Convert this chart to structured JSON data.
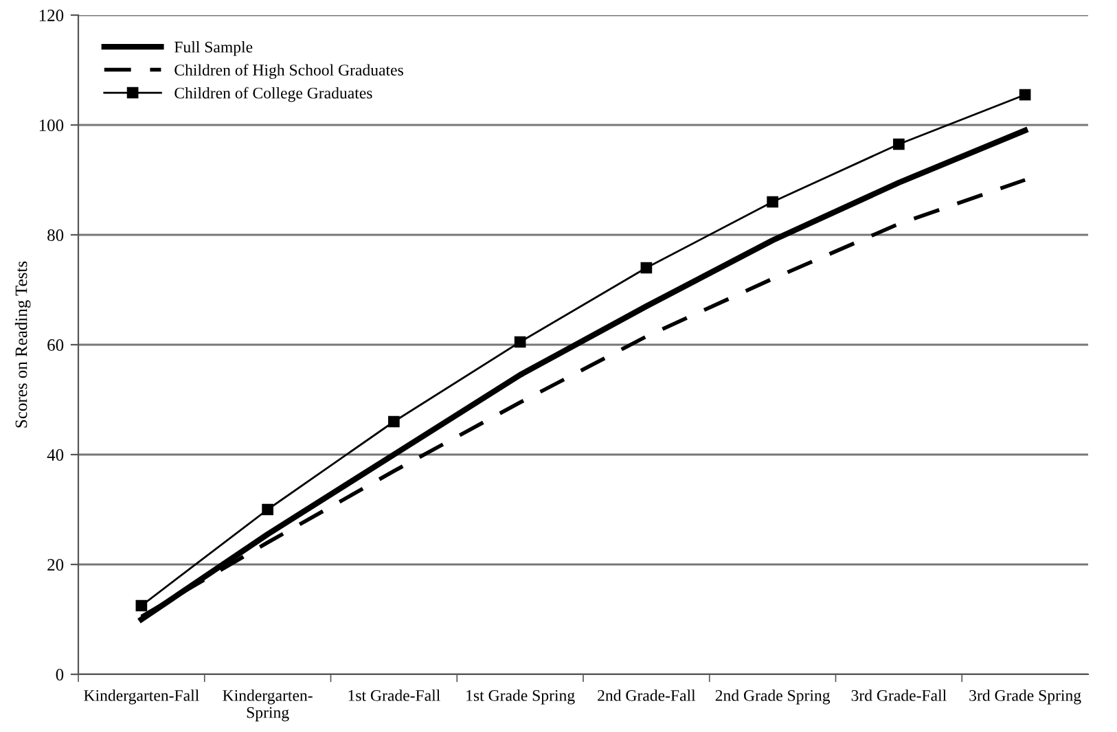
{
  "chart_data": {
    "type": "line",
    "ylabel": "Scores on Reading Tests",
    "categories": [
      "Kindergarten-Fall",
      "Kindergarten-\nSpring",
      "1st Grade-Fall",
      "1st Grade Spring",
      "2nd Grade-Fall",
      "2nd Grade Spring",
      "3rd Grade-Fall",
      "3rd Grade Spring"
    ],
    "series": [
      {
        "name": "Full Sample",
        "color": "#000000",
        "line_style": "solid",
        "marker": "none",
        "values": [
          10,
          25.5,
          40,
          54.5,
          67,
          79,
          89.5,
          99
        ]
      },
      {
        "name": "Children of High School Graduates",
        "color": "#000000",
        "line_style": "dashed",
        "marker": "none",
        "values": [
          10.5,
          24,
          37,
          49.5,
          61.5,
          72,
          82,
          90
        ]
      },
      {
        "name": "Children of College Graduates",
        "color": "#000000",
        "line_style": "solid",
        "marker": "square",
        "values": [
          12.5,
          30,
          46,
          60.5,
          74,
          86,
          96.5,
          105.5
        ]
      }
    ],
    "ylim": [
      0,
      120
    ],
    "yticks": [
      0,
      20,
      40,
      60,
      80,
      100,
      120
    ],
    "grid": "y",
    "legend": "top left"
  }
}
